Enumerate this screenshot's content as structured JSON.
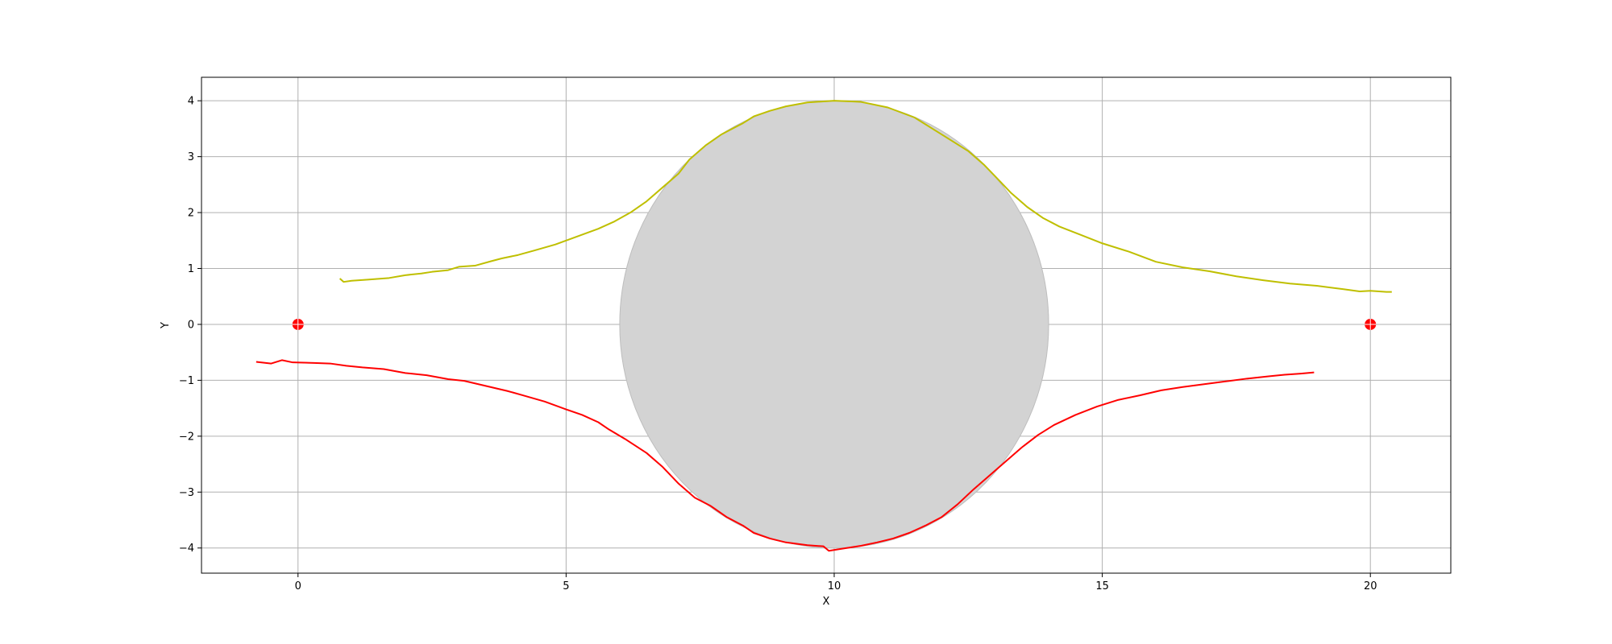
{
  "chart_data": {
    "type": "line",
    "title": "",
    "xlabel": "X",
    "ylabel": "Y",
    "xlim": [
      -1.8,
      21.5
    ],
    "ylim": [
      -4.45,
      4.42
    ],
    "xticks": [
      0,
      5,
      10,
      15,
      20
    ],
    "yticks": [
      -4,
      -3,
      -2,
      -1,
      0,
      1,
      2,
      3,
      4
    ],
    "grid": true,
    "colors": {
      "upper": "#bfbf00",
      "lower": "#ff0000",
      "points": "#ff0000",
      "circle_fill": "#d3d3d3",
      "circle_edge": "#bdbdbd",
      "grid": "#b0b0b0"
    },
    "circle": {
      "center": [
        10,
        0
      ],
      "radius": [
        4.0,
        4.0
      ]
    },
    "points": [
      {
        "x": 0,
        "y": 0
      },
      {
        "x": 20,
        "y": 0
      }
    ],
    "series": [
      {
        "color_key": "upper",
        "x": [
          0.78,
          0.85,
          1.0,
          1.3,
          1.7,
          2.0,
          2.3,
          2.5,
          2.8,
          3.0,
          3.3,
          3.6,
          3.8,
          4.1,
          4.4,
          4.8,
          5.2,
          5.6,
          5.9,
          6.2,
          6.5,
          6.8,
          7.1,
          7.3,
          7.6,
          7.9,
          8.1,
          8.3,
          8.5,
          8.8,
          9.1,
          9.5,
          10.0,
          10.5,
          11.0,
          11.5,
          12.0,
          12.5,
          12.8,
          13.1,
          13.3,
          13.6,
          13.9,
          14.2,
          14.6,
          15.0,
          15.5,
          16.0,
          16.5,
          17.0,
          17.5,
          18.0,
          18.5,
          19.0,
          19.5,
          19.8,
          20.0,
          20.3,
          20.4
        ],
        "y": [
          0.82,
          0.76,
          0.78,
          0.8,
          0.83,
          0.88,
          0.91,
          0.94,
          0.97,
          1.03,
          1.05,
          1.13,
          1.18,
          1.24,
          1.32,
          1.43,
          1.57,
          1.71,
          1.84,
          2.0,
          2.2,
          2.45,
          2.7,
          2.95,
          3.2,
          3.4,
          3.5,
          3.6,
          3.72,
          3.82,
          3.9,
          3.97,
          4.0,
          3.98,
          3.88,
          3.7,
          3.4,
          3.1,
          2.85,
          2.55,
          2.35,
          2.1,
          1.9,
          1.75,
          1.6,
          1.45,
          1.3,
          1.12,
          1.02,
          0.95,
          0.86,
          0.79,
          0.73,
          0.69,
          0.63,
          0.59,
          0.6,
          0.58,
          0.58
        ]
      },
      {
        "color_key": "lower",
        "x": [
          -0.78,
          -0.5,
          -0.3,
          -0.1,
          0.3,
          0.6,
          0.9,
          1.2,
          1.6,
          2.0,
          2.4,
          2.8,
          3.1,
          3.5,
          3.9,
          4.2,
          4.6,
          5.0,
          5.3,
          5.6,
          5.8,
          6.1,
          6.5,
          6.8,
          7.1,
          7.4,
          7.7,
          8.0,
          8.3,
          8.5,
          8.8,
          9.1,
          9.5,
          9.8,
          9.9,
          10.1,
          10.5,
          10.8,
          11.1,
          11.4,
          11.7,
          12.0,
          12.3,
          12.6,
          12.9,
          13.2,
          13.5,
          13.8,
          14.1,
          14.5,
          14.9,
          15.3,
          15.7,
          16.1,
          16.5,
          16.9,
          17.3,
          17.7,
          18.1,
          18.4,
          18.7,
          18.95
        ],
        "y": [
          -0.67,
          -0.7,
          -0.64,
          -0.68,
          -0.69,
          -0.7,
          -0.74,
          -0.77,
          -0.8,
          -0.87,
          -0.91,
          -0.98,
          -1.01,
          -1.1,
          -1.19,
          -1.27,
          -1.38,
          -1.52,
          -1.62,
          -1.75,
          -1.88,
          -2.05,
          -2.3,
          -2.55,
          -2.85,
          -3.1,
          -3.25,
          -3.45,
          -3.6,
          -3.73,
          -3.83,
          -3.9,
          -3.95,
          -3.97,
          -4.05,
          -4.02,
          -3.96,
          -3.9,
          -3.83,
          -3.73,
          -3.6,
          -3.45,
          -3.22,
          -2.95,
          -2.7,
          -2.45,
          -2.2,
          -1.98,
          -1.8,
          -1.62,
          -1.47,
          -1.35,
          -1.27,
          -1.18,
          -1.12,
          -1.07,
          -1.02,
          -0.97,
          -0.93,
          -0.9,
          -0.88,
          -0.86
        ]
      }
    ]
  }
}
